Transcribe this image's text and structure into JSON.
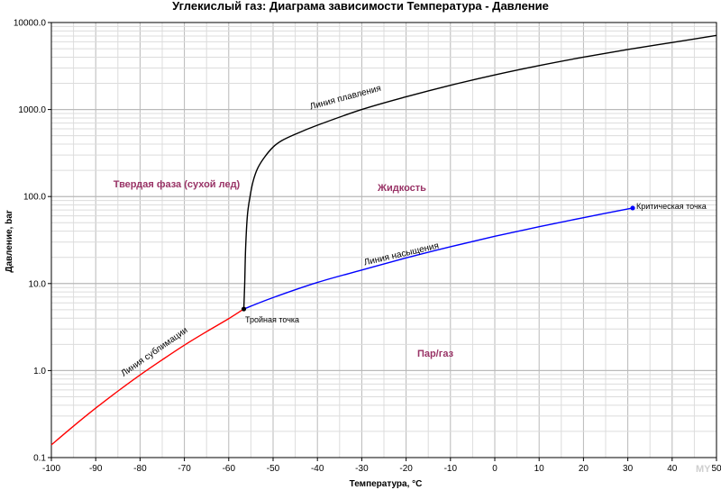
{
  "chart_data": {
    "type": "line",
    "title": "Углекислый газ: Диаграма зависимости Температура - Давление",
    "xlabel": "Температура, °C",
    "ylabel": "Давление, bar",
    "xlim": [
      -100,
      50
    ],
    "ylim": [
      0.1,
      10000
    ],
    "yscale": "log",
    "grid": true,
    "x_ticks": [
      -100,
      -90,
      -80,
      -70,
      -60,
      -50,
      -40,
      -30,
      -20,
      -10,
      0,
      10,
      20,
      30,
      40,
      50
    ],
    "x_tick_labels": [
      "-100",
      "-90",
      "-80",
      "-70",
      "-60",
      "-50",
      "-40",
      "-30",
      "-20",
      "-10",
      "0",
      "10",
      "20",
      "30",
      "40",
      "50"
    ],
    "y_ticks": [
      0.1,
      1,
      10,
      100,
      1000,
      10000
    ],
    "y_tick_labels": [
      "0.1",
      "1.0",
      "10.0",
      "100.0",
      "1000.0",
      "10000.0"
    ],
    "series": [
      {
        "color": "#ff0000",
        "x": [
          -100,
          -95,
          -90,
          -85,
          -80,
          -75,
          -70,
          -65,
          -60,
          -56.6
        ],
        "y": [
          0.14,
          0.23,
          0.37,
          0.58,
          0.89,
          1.33,
          1.96,
          2.8,
          3.95,
          5.1
        ]
      },
      {
        "color": "#0000ff",
        "x": [
          -56.6,
          -50,
          -40,
          -30,
          -20,
          -10,
          0,
          10,
          20,
          31.1
        ],
        "y": [
          5.1,
          6.9,
          10.3,
          14.3,
          19.7,
          26.5,
          34.9,
          45.0,
          57.2,
          73.8
        ]
      },
      {
        "color": "#000000",
        "x": [
          -56.6,
          -56.4,
          -56.2,
          -55.8,
          -55.2,
          -54.5,
          -53.5,
          -52,
          -50,
          -48,
          -45,
          -40,
          -30,
          -20,
          -10,
          0,
          10,
          20,
          30,
          40,
          50
        ],
        "y": [
          5.1,
          10,
          25,
          60,
          100,
          150,
          210,
          280,
          370,
          440,
          520,
          660,
          1000,
          1400,
          1900,
          2500,
          3200,
          4000,
          4900,
          5900,
          7100
        ]
      }
    ],
    "points": [
      {
        "x": -56.6,
        "y": 5.1,
        "color": "#000000"
      },
      {
        "x": 31.1,
        "y": 73.8,
        "color": "#0000ff"
      }
    ],
    "annotations": {
      "solid": "Твердая фаза (сухой лед)",
      "liquid": "Жидкость",
      "gas": "Пар/газ",
      "melting": "Линия плавления",
      "saturation": "Линия насыщения",
      "sublimation": "Линия сублимации",
      "triple": "Тройная точка",
      "critical": "Критическая точка"
    },
    "region_color": "#993366"
  },
  "watermark": "MY"
}
